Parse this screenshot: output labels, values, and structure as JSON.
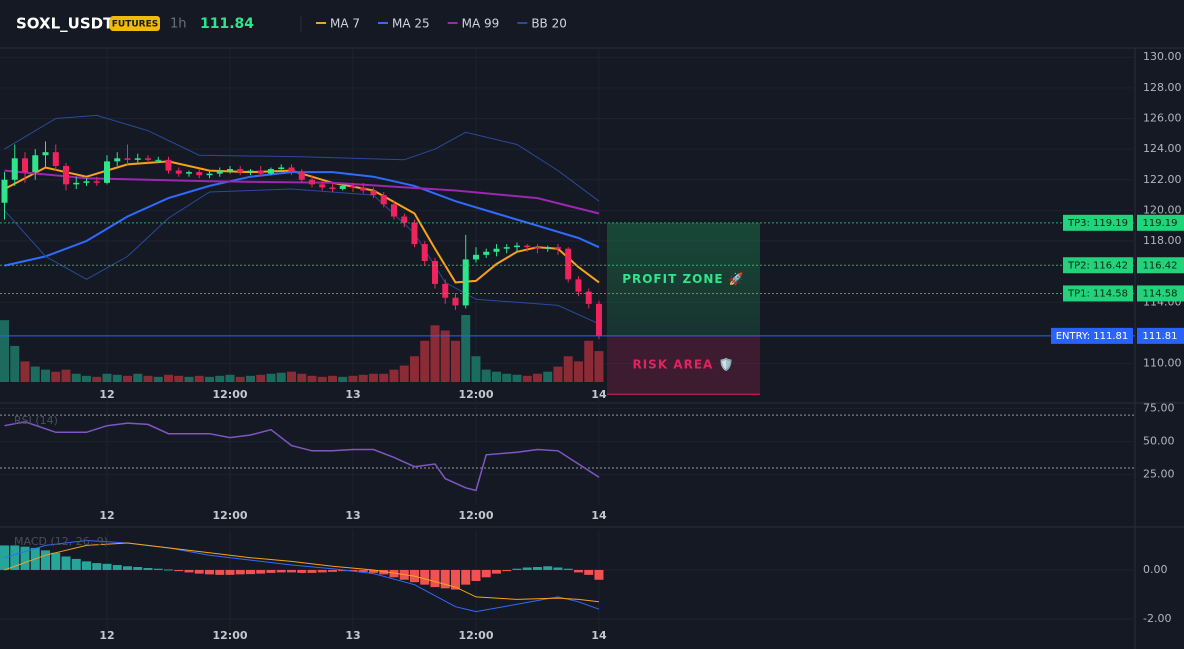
{
  "header": {
    "symbol": "SOXL_USDT",
    "badge": "FUTURES",
    "interval": "1h",
    "price": 111.84
  },
  "chart_data": [
    {
      "type": "candlestick",
      "x": [
        -10,
        -9,
        -8,
        -7,
        -6,
        -5,
        -4,
        -3,
        -2,
        -1,
        0,
        1,
        2,
        3,
        4,
        5,
        6,
        7,
        8,
        9,
        10,
        11,
        12,
        13,
        14,
        15,
        16,
        17,
        18,
        19,
        20,
        21,
        22,
        23,
        24,
        25,
        26,
        27,
        28,
        29,
        30,
        31,
        32,
        33,
        34,
        35,
        36,
        37,
        38,
        39,
        40,
        41,
        42,
        43,
        44,
        45,
        46,
        47,
        48
      ],
      "open": [
        120.5,
        122,
        123.4,
        122.5,
        123.6,
        123.8,
        122.9,
        121.7,
        121.8,
        121.9,
        121.8,
        123.2,
        123.4,
        123.3,
        123.4,
        123.3,
        123.3,
        122.6,
        122.4,
        122.5,
        122.3,
        122.4,
        122.6,
        122.7,
        122.5,
        122.6,
        122.4,
        122.7,
        122.8,
        122.5,
        122.0,
        121.7,
        121.5,
        121.4,
        121.6,
        121.5,
        121.3,
        121.0,
        120.4,
        119.6,
        119.2,
        117.8,
        116.7,
        115.2,
        114.3,
        113.8,
        116.8,
        117.1,
        117.3,
        117.5,
        117.6,
        117.7,
        117.6,
        117.5,
        117.6,
        117.5,
        115.5,
        114.7,
        113.9
      ],
      "high": [
        122.5,
        124.3,
        123.8,
        124.0,
        124.5,
        124.3,
        123.1,
        122.2,
        122.1,
        122.2,
        123.6,
        123.8,
        124.3,
        123.7,
        123.6,
        123.5,
        123.5,
        122.8,
        122.6,
        122.7,
        122.6,
        122.8,
        122.9,
        122.9,
        122.7,
        122.9,
        122.8,
        123.0,
        123.0,
        122.7,
        122.3,
        121.9,
        121.8,
        121.7,
        121.8,
        121.8,
        121.5,
        121.2,
        120.6,
        119.8,
        119.4,
        118.0,
        116.9,
        115.5,
        114.6,
        118.4,
        117.6,
        117.5,
        117.8,
        117.8,
        117.9,
        117.8,
        117.8,
        117.7,
        117.8,
        117.6,
        115.7,
        114.9,
        114.1
      ],
      "low": [
        119.4,
        121.6,
        121.8,
        122.0,
        122.8,
        122.6,
        121.3,
        121.4,
        121.6,
        121.6,
        121.7,
        122.9,
        123.0,
        123.1,
        123.1,
        123.1,
        122.4,
        122.2,
        122.2,
        122.1,
        122.1,
        122.2,
        122.4,
        122.3,
        122.3,
        122.2,
        122.3,
        122.5,
        122.3,
        121.8,
        121.5,
        121.3,
        121.2,
        121.3,
        121.2,
        121.1,
        120.8,
        120.2,
        119.4,
        118.9,
        117.6,
        116.4,
        114.9,
        113.9,
        113.5,
        113.6,
        116.6,
        116.9,
        117.0,
        117.2,
        117.3,
        117.3,
        117.2,
        117.3,
        117.1,
        115.3,
        114.4,
        113.6,
        111.6
      ],
      "close": [
        122.0,
        123.4,
        122.5,
        123.6,
        123.8,
        122.9,
        121.7,
        121.8,
        121.9,
        121.8,
        123.2,
        123.4,
        123.3,
        123.4,
        123.3,
        123.3,
        122.6,
        122.4,
        122.5,
        122.3,
        122.4,
        122.6,
        122.7,
        122.5,
        122.6,
        122.4,
        122.7,
        122.8,
        122.5,
        122.0,
        121.7,
        121.5,
        121.4,
        121.6,
        121.5,
        121.3,
        121.0,
        120.4,
        119.6,
        119.2,
        117.8,
        116.7,
        115.2,
        114.3,
        113.8,
        116.8,
        117.1,
        117.3,
        117.5,
        117.6,
        117.7,
        117.6,
        117.5,
        117.6,
        117.5,
        115.5,
        114.7,
        113.9,
        111.81
      ],
      "volume": [
        60,
        35,
        20,
        15,
        12,
        10,
        12,
        8,
        6,
        5,
        8,
        7,
        6,
        8,
        6,
        5,
        7,
        6,
        5,
        6,
        5,
        6,
        7,
        5,
        6,
        7,
        8,
        9,
        10,
        8,
        6,
        5,
        6,
        5,
        6,
        7,
        8,
        8,
        12,
        16,
        25,
        40,
        55,
        50,
        40,
        65,
        25,
        12,
        10,
        8,
        7,
        6,
        8,
        10,
        15,
        25,
        20,
        40,
        30
      ],
      "up_color": "#2ee58a",
      "down_color": "#f0245c",
      "up_volume_color": "#1d6b5e",
      "down_volume_color": "#8a2b36",
      "lines": [
        {
          "name": "MA 7",
          "color": "#f7a21b",
          "x": [
            -10,
            -6,
            -2,
            2,
            6,
            10,
            14,
            18,
            22,
            26,
            30,
            32,
            34,
            36,
            38,
            40,
            42,
            44,
            46,
            48
          ],
          "values": [
            121.4,
            122.8,
            122.2,
            123.0,
            123.2,
            122.6,
            122.5,
            122.6,
            121.8,
            121.3,
            119.8,
            117.5,
            115.3,
            115.4,
            116.5,
            117.3,
            117.6,
            117.5,
            116.3,
            115.3
          ]
        },
        {
          "name": "MA 25",
          "color": "#2f6bff",
          "x": [
            -10,
            -6,
            -2,
            2,
            6,
            10,
            14,
            18,
            22,
            26,
            30,
            34,
            38,
            42,
            46,
            48
          ],
          "values": [
            116.4,
            117.0,
            118.0,
            119.6,
            120.8,
            121.6,
            122.2,
            122.5,
            122.5,
            122.2,
            121.6,
            120.6,
            119.8,
            119.0,
            118.2,
            117.6
          ]
        },
        {
          "name": "MA 99",
          "color": "#9c27b0",
          "x": [
            -10,
            -2,
            10,
            22,
            34,
            42,
            48
          ],
          "values": [
            122.6,
            122.1,
            121.9,
            121.8,
            121.3,
            120.8,
            119.8
          ]
        },
        {
          "name": "BB 20",
          "color": "#2a4a9a",
          "x": [
            -10,
            -5,
            -1,
            4,
            9,
            19,
            29,
            32,
            35,
            40,
            44,
            48
          ],
          "values": [
            124.0,
            126.0,
            126.2,
            125.2,
            123.6,
            123.5,
            123.3,
            124.0,
            125.1,
            124.3,
            122.6,
            120.6
          ],
          "lower": {
            "x": [
              -10,
              -6,
              -2,
              2,
              6,
              10,
              18,
              26,
              30,
              33,
              36,
              40,
              44,
              48
            ],
            "values": [
              120.0,
              117.0,
              115.5,
              117.0,
              119.5,
              121.2,
              121.4,
              121.0,
              118.5,
              115.3,
              114.2,
              114.0,
              113.8,
              112.6
            ]
          }
        }
      ],
      "levels": [
        {
          "label": "TP3: 119.19",
          "value": 119.19,
          "kind": "target"
        },
        {
          "label": "TP2: 116.42",
          "value": 116.42,
          "kind": "target"
        },
        {
          "label": "TP1: 114.58",
          "value": 114.58,
          "kind": "target"
        },
        {
          "label": "ENTRY: 111.81",
          "value": 111.81,
          "kind": "entry"
        }
      ],
      "profit_zone": {
        "label": "PROFIT ZONE 🚀",
        "from": 111.81,
        "to": 119.19
      },
      "risk_zone": {
        "label": "RISK AREA 🛡️",
        "from": 111.81,
        "to": 108.0
      },
      "xlim": [
        -10.44,
        100.3
      ],
      "xticks": [
        {
          "value": 0,
          "label": "12"
        },
        {
          "value": 12,
          "label": "12:00"
        },
        {
          "value": 24,
          "label": "13"
        },
        {
          "value": 36,
          "label": "12:00"
        },
        {
          "value": 48,
          "label": "14"
        }
      ],
      "ylim": [
        108.8,
        130.6
      ],
      "yticks": [
        {
          "value": 110,
          "label": "110.00"
        },
        {
          "value": 114,
          "label": "114.00"
        },
        {
          "value": 118,
          "label": "118.00"
        },
        {
          "value": 120,
          "label": "120.00"
        },
        {
          "value": 122,
          "label": "122.00"
        },
        {
          "value": 124,
          "label": "124.00"
        },
        {
          "value": 126,
          "label": "126.00"
        },
        {
          "value": 128,
          "label": "128.00"
        },
        {
          "value": 130,
          "label": "130.00"
        }
      ],
      "grid": true
    },
    {
      "type": "line",
      "title": "RSI (14)",
      "color": "#7e57c2",
      "x": [
        -10,
        -8,
        -5,
        -2,
        0,
        2,
        4,
        6,
        10,
        12,
        14,
        16,
        18,
        20,
        22,
        24,
        26,
        28,
        30,
        32,
        33,
        35,
        36,
        37,
        40,
        42,
        44,
        46,
        48
      ],
      "values": [
        62,
        65,
        57,
        57,
        62,
        64,
        63,
        56,
        56,
        53,
        55,
        59,
        47,
        43,
        43,
        44,
        44,
        38,
        31,
        33,
        22,
        15,
        13,
        40,
        42,
        44,
        43,
        33,
        23
      ],
      "bands": [
        70,
        30
      ],
      "xlim": [
        -10.44,
        100.3
      ],
      "xticks": [
        {
          "value": 0,
          "label": "12"
        },
        {
          "value": 12,
          "label": "12:00"
        },
        {
          "value": 24,
          "label": "13"
        },
        {
          "value": 36,
          "label": "12:00"
        },
        {
          "value": 48,
          "label": "14"
        }
      ],
      "ylim": [
        2,
        83
      ],
      "yticks": [
        {
          "value": 25,
          "label": "25.00"
        },
        {
          "value": 50,
          "label": "50.00"
        },
        {
          "value": 75,
          "label": "75.00"
        }
      ]
    },
    {
      "type": "macd",
      "title": "MACD (12, 26, 9)",
      "x": [
        -10,
        -9,
        -8,
        -7,
        -6,
        -5,
        -4,
        -3,
        -2,
        -1,
        0,
        1,
        2,
        3,
        4,
        5,
        6,
        7,
        8,
        9,
        10,
        11,
        12,
        13,
        14,
        15,
        16,
        17,
        18,
        19,
        20,
        21,
        22,
        23,
        24,
        25,
        26,
        27,
        28,
        29,
        30,
        31,
        32,
        33,
        34,
        35,
        36,
        37,
        38,
        39,
        40,
        41,
        42,
        43,
        44,
        45,
        46,
        47,
        48
      ],
      "histogram": [
        1.0,
        1.0,
        0.95,
        0.9,
        0.8,
        0.7,
        0.55,
        0.45,
        0.35,
        0.28,
        0.25,
        0.2,
        0.15,
        0.12,
        0.08,
        0.05,
        0.02,
        -0.05,
        -0.1,
        -0.15,
        -0.18,
        -0.2,
        -0.2,
        -0.18,
        -0.17,
        -0.15,
        -0.12,
        -0.1,
        -0.1,
        -0.12,
        -0.12,
        -0.1,
        -0.08,
        -0.05,
        -0.05,
        -0.08,
        -0.12,
        -0.18,
        -0.3,
        -0.4,
        -0.5,
        -0.6,
        -0.7,
        -0.75,
        -0.8,
        -0.6,
        -0.45,
        -0.3,
        -0.15,
        -0.05,
        0.05,
        0.1,
        0.12,
        0.15,
        0.1,
        0.05,
        -0.1,
        -0.2,
        -0.4
      ],
      "up_color": "#26a69a",
      "down_color": "#ef5350",
      "series": [
        {
          "color": "#2f6bff",
          "x": [
            -10,
            -6,
            -2,
            2,
            6,
            10,
            14,
            18,
            22,
            26,
            30,
            34,
            36,
            40,
            44,
            46,
            48
          ],
          "values": [
            0.5,
            1.0,
            1.2,
            1.1,
            0.9,
            0.6,
            0.4,
            0.2,
            0.05,
            -0.15,
            -0.6,
            -1.5,
            -1.7,
            -1.4,
            -1.1,
            -1.3,
            -1.6
          ]
        },
        {
          "color": "#f7a21b",
          "x": [
            -10,
            -6,
            -2,
            2,
            6,
            10,
            14,
            18,
            22,
            26,
            30,
            34,
            36,
            40,
            44,
            46,
            48
          ],
          "values": [
            0.0,
            0.6,
            1.0,
            1.1,
            0.9,
            0.7,
            0.5,
            0.35,
            0.15,
            0.0,
            -0.25,
            -0.7,
            -1.1,
            -1.2,
            -1.15,
            -1.2,
            -1.3
          ]
        }
      ],
      "xlim": [
        -10.44,
        100.3
      ],
      "xticks": [
        {
          "value": 0,
          "label": "12"
        },
        {
          "value": 12,
          "label": "12:00"
        },
        {
          "value": 24,
          "label": "13"
        },
        {
          "value": 36,
          "label": "12:00"
        },
        {
          "value": 48,
          "label": "14"
        }
      ],
      "ylim": [
        -2.45,
        1.63
      ],
      "yticks": [
        {
          "value": 0,
          "label": "0.00"
        },
        {
          "value": -2,
          "label": "-2.00"
        }
      ]
    }
  ]
}
